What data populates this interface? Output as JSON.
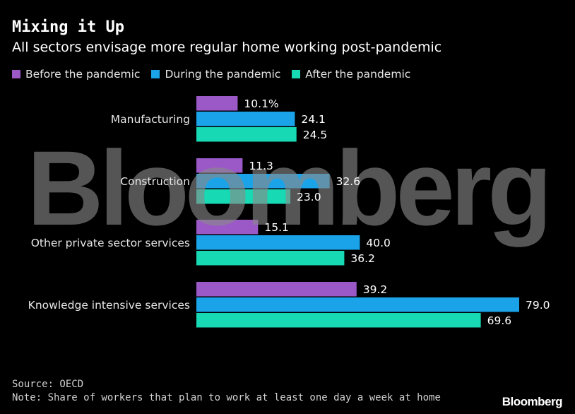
{
  "header": {
    "title": "Mixing it Up",
    "subtitle": "All sectors envisage more regular home working post-pandemic"
  },
  "colors": {
    "before": "#9b59c8",
    "during": "#1aa3e8",
    "after": "#17d9b4"
  },
  "chart_data": {
    "type": "bar",
    "orientation": "horizontal",
    "title": "Mixing it Up",
    "subtitle": "All sectors envisage more regular home working post-pandemic",
    "categories": [
      "Manufacturing",
      "Construction",
      "Other private sector services",
      "Knowledge intensive services"
    ],
    "series": [
      {
        "name": "Before the pandemic",
        "values": [
          10.1,
          11.3,
          15.1,
          39.2
        ],
        "labels": [
          "10.1%",
          "11.3",
          "15.1",
          "39.2"
        ]
      },
      {
        "name": "During the pandemic",
        "values": [
          24.1,
          32.6,
          40.0,
          79.0
        ],
        "labels": [
          "24.1",
          "32.6",
          "40.0",
          "79.0"
        ]
      },
      {
        "name": "After the pandemic",
        "values": [
          24.5,
          23.0,
          36.2,
          69.6
        ],
        "labels": [
          "24.5",
          "23.0",
          "36.2",
          "69.6"
        ]
      }
    ],
    "xlim": [
      0,
      79
    ],
    "legend_position": "top",
    "grid": false,
    "unit": "%"
  },
  "watermark": "Bloomberg",
  "footer": {
    "source": "Source: OECD",
    "note": "Note: Share of workers that plan to work at least one day a week at home",
    "logo": "Bloomberg"
  }
}
